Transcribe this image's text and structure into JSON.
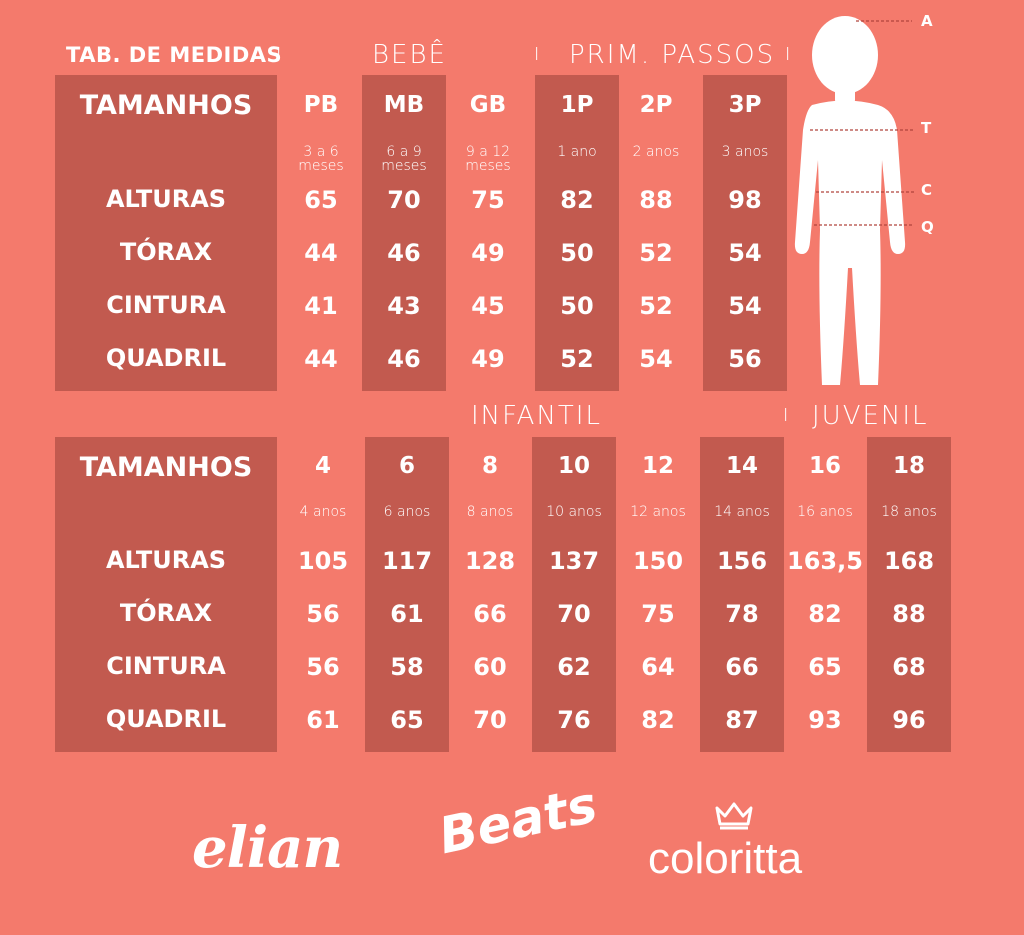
{
  "header": {
    "title": "TAB. DE MEDIDAS",
    "separator": "I",
    "group_bebe": "BEBÊ",
    "group_prim": "PRIM. PASSOS",
    "group_infantil": "INFANTIL",
    "group_juvenil": "JUVENIL"
  },
  "row_labels": {
    "tamanhos": "TAMANHOS",
    "alturas": "ALTURAS",
    "torax": "TÓRAX",
    "cintura": "CINTURA",
    "quadril": "QUADRIL"
  },
  "table_top": {
    "columns": [
      {
        "size": "PB",
        "age": "3 a 6\nmeses",
        "altura": "65",
        "torax": "44",
        "cintura": "41",
        "quadril": "44"
      },
      {
        "size": "MB",
        "age": "6 a 9\nmeses",
        "altura": "70",
        "torax": "46",
        "cintura": "43",
        "quadril": "46"
      },
      {
        "size": "GB",
        "age": "9 a 12\nmeses",
        "altura": "75",
        "torax": "49",
        "cintura": "45",
        "quadril": "49"
      },
      {
        "size": "1P",
        "age": "1 ano",
        "altura": "82",
        "torax": "50",
        "cintura": "50",
        "quadril": "52"
      },
      {
        "size": "2P",
        "age": "2 anos",
        "altura": "88",
        "torax": "52",
        "cintura": "52",
        "quadril": "54"
      },
      {
        "size": "3P",
        "age": "3 anos",
        "altura": "98",
        "torax": "54",
        "cintura": "54",
        "quadril": "56"
      }
    ]
  },
  "table_bottom": {
    "columns": [
      {
        "size": "4",
        "age": "4 anos",
        "altura": "105",
        "torax": "56",
        "cintura": "56",
        "quadril": "61"
      },
      {
        "size": "6",
        "age": "6 anos",
        "altura": "117",
        "torax": "61",
        "cintura": "58",
        "quadril": "65"
      },
      {
        "size": "8",
        "age": "8 anos",
        "altura": "128",
        "torax": "66",
        "cintura": "60",
        "quadril": "70"
      },
      {
        "size": "10",
        "age": "10 anos",
        "altura": "137",
        "torax": "70",
        "cintura": "62",
        "quadril": "76"
      },
      {
        "size": "12",
        "age": "12 anos",
        "altura": "150",
        "torax": "75",
        "cintura": "64",
        "quadril": "82"
      },
      {
        "size": "14",
        "age": "14 anos",
        "altura": "156",
        "torax": "78",
        "cintura": "66",
        "quadril": "87"
      },
      {
        "size": "16",
        "age": "16 anos",
        "altura": "163,5",
        "torax": "82",
        "cintura": "65",
        "quadril": "93"
      },
      {
        "size": "18",
        "age": "18 anos",
        "altura": "168",
        "torax": "88",
        "cintura": "68",
        "quadril": "96"
      }
    ]
  },
  "figure_marks": {
    "a": "A",
    "t": "T",
    "c": "C",
    "q": "Q"
  },
  "brands": {
    "elian": "elian",
    "beats": "Beats",
    "coloritta": "coloritta"
  },
  "colors": {
    "background": "#f47a6c",
    "band": "#c25a4f",
    "text": "#ffffff"
  }
}
